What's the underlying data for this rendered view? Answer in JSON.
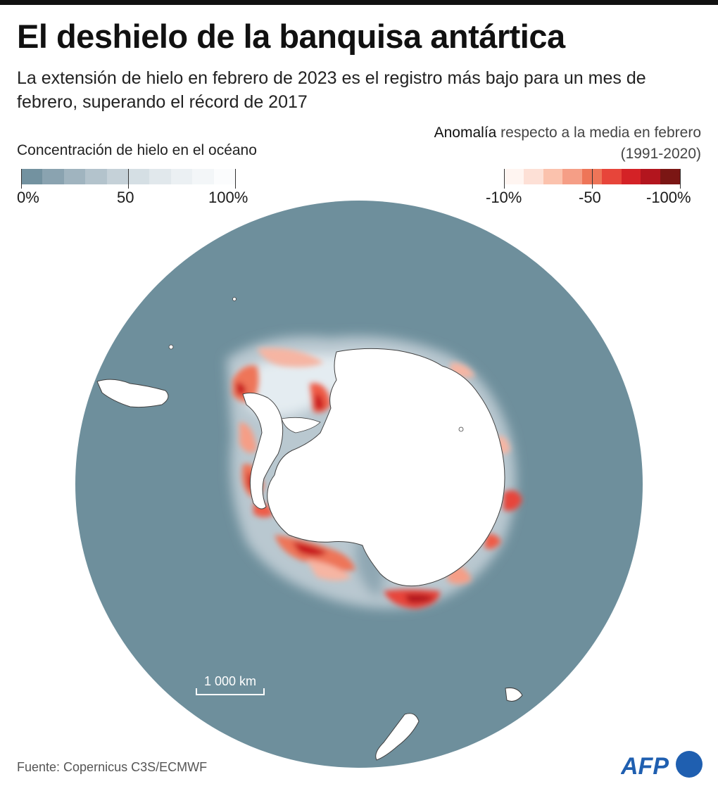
{
  "title": "El deshielo de la banquisa antártica",
  "subtitle": "La extensión de hielo en febrero de 2023 es el registro más bajo para un mes de febrero, superando el récord de 2017",
  "legend_concentration": {
    "title": "Concentración de hielo en el océano",
    "ticks": [
      "0%",
      "50",
      "100%"
    ],
    "colors": [
      "#7392a0",
      "#8aa3b0",
      "#a0b4bf",
      "#b3c3cc",
      "#c5d1d8",
      "#d5dfe4",
      "#e1e8ec",
      "#ebf0f3",
      "#f3f6f8",
      "#fbfcfd"
    ]
  },
  "legend_anomaly": {
    "title_strong": "Anomalía",
    "title_rest": " respecto a la media en febrero (1991-2020)",
    "ticks": [
      "-10%",
      "-50",
      "-100%"
    ],
    "colors": [
      "#fff5f1",
      "#fde0d6",
      "#fbc2ad",
      "#f59e86",
      "#ee7558",
      "#e7453a",
      "#d42226",
      "#b3151e",
      "#7b1614"
    ]
  },
  "map": {
    "ocean_color": "#6e8f9c",
    "land_color": "#ffffff",
    "scale_bar_label": "1 000 km"
  },
  "source": "Fuente: Copernicus C3S/ECMWF",
  "logo_text": "AFP",
  "colors": {
    "logo": "#1f5fb0",
    "anomaly_strong": "#c8161d",
    "anomaly_mid": "#ef5b47",
    "anomaly_light": "#f6b5a3"
  }
}
